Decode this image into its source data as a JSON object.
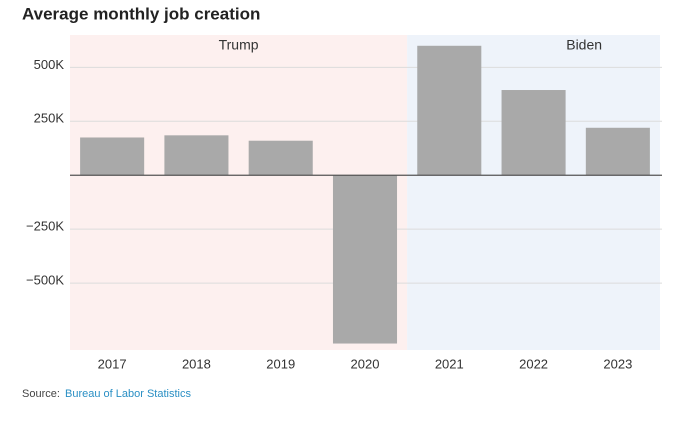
{
  "chart_data": {
    "type": "bar",
    "title": "Average monthly job creation",
    "categories": [
      "2017",
      "2018",
      "2019",
      "2020",
      "2021",
      "2022",
      "2023"
    ],
    "values": [
      175000,
      185000,
      160000,
      -780000,
      600000,
      395000,
      220000
    ],
    "color": "#a9a9a9",
    "ylim": [
      -810000,
      650000
    ],
    "yticks": [
      {
        "value": -500000,
        "label": "−500K"
      },
      {
        "value": -250000,
        "label": "−250K"
      },
      {
        "value": 250000,
        "label": "250K"
      },
      {
        "value": 500000,
        "label": "500K"
      }
    ],
    "grid": true,
    "periods": [
      {
        "label": "Trump",
        "start": "2017",
        "end": "2020",
        "color": "#fdf0ef"
      },
      {
        "label": "Biden",
        "start": "2021",
        "end": "2023",
        "color": "#eef3fa"
      }
    ],
    "source": {
      "prefix": "Source:",
      "text": "Bureau of Labor Statistics",
      "color": "#2a8fc4"
    }
  }
}
